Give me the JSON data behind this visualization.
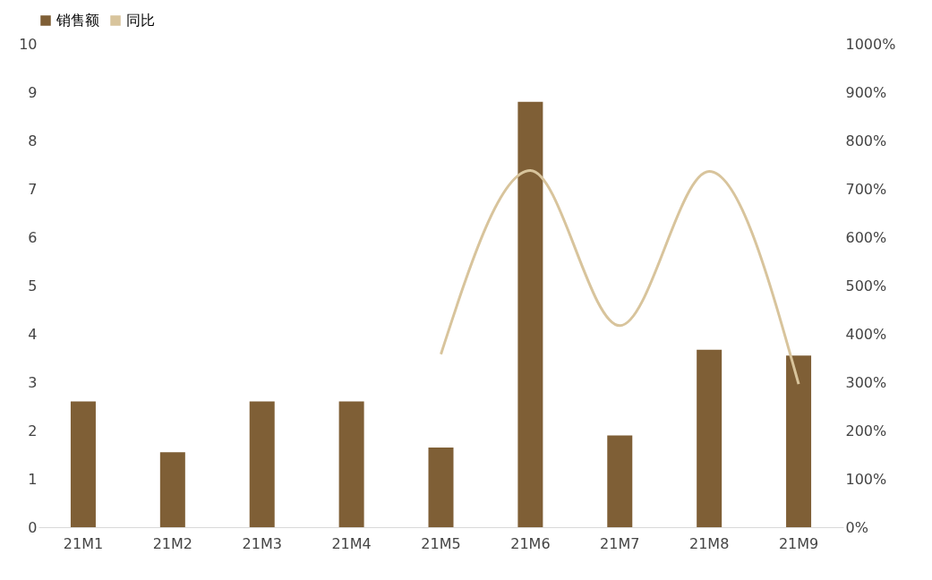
{
  "chart_data": {
    "type": "bar",
    "categories": [
      "21M1",
      "21M2",
      "21M3",
      "21M4",
      "21M5",
      "21M6",
      "21M7",
      "21M8",
      "21M9"
    ],
    "series": [
      {
        "name": "销售额",
        "color": "#7f5f36",
        "values": [
          2.6,
          1.55,
          2.6,
          2.6,
          1.65,
          8.8,
          1.9,
          3.67,
          3.55
        ]
      },
      {
        "name": "同比",
        "type": "line",
        "axis": "y2",
        "color": "#d8c49c",
        "values": [
          null,
          null,
          null,
          null,
          358,
          738,
          417,
          736,
          296
        ]
      }
    ],
    "ylim": [
      0,
      10
    ],
    "yticks": [
      0,
      1,
      2,
      3,
      4,
      5,
      6,
      7,
      8,
      9,
      10
    ],
    "y2lim": [
      0,
      1000
    ],
    "y2ticks": [
      {
        "value": 0,
        "label": "0%"
      },
      {
        "value": 100,
        "label": "100%"
      },
      {
        "value": 200,
        "label": "200%"
      },
      {
        "value": 300,
        "label": "300%"
      },
      {
        "value": 400,
        "label": "400%"
      },
      {
        "value": 500,
        "label": "500%"
      },
      {
        "value": 600,
        "label": "600%"
      },
      {
        "value": 700,
        "label": "700%"
      },
      {
        "value": 800,
        "label": "800%"
      },
      {
        "value": 900,
        "label": "900%"
      },
      {
        "value": 1000,
        "label": "1000%"
      }
    ],
    "legend": "top",
    "grid": false
  }
}
